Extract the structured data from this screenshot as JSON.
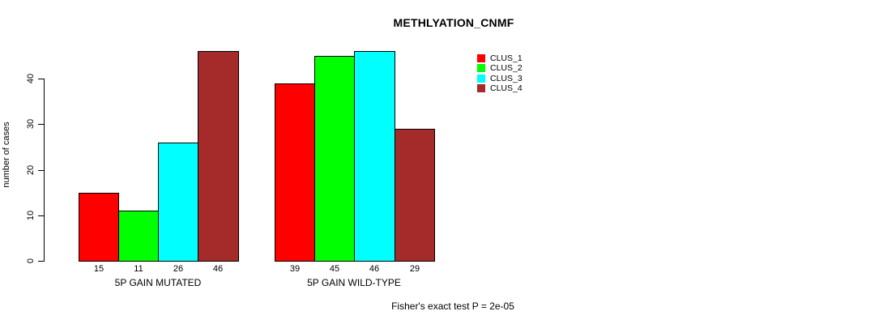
{
  "chart_data": {
    "type": "bar",
    "title": "METHLYATION_CNMF",
    "ylabel": "number of cases",
    "xlabel": "",
    "groups": [
      "5P GAIN MUTATED",
      "5P GAIN WILD-TYPE"
    ],
    "series": [
      {
        "name": "CLUS_1",
        "color": "#ff0000",
        "values": [
          15,
          39
        ]
      },
      {
        "name": "CLUS_2",
        "color": "#00ff00",
        "values": [
          11,
          45
        ]
      },
      {
        "name": "CLUS_3",
        "color": "#00ffff",
        "values": [
          26,
          46
        ]
      },
      {
        "name": "CLUS_4",
        "color": "#a52a2a",
        "values": [
          46,
          29
        ]
      }
    ],
    "yticks": [
      0,
      10,
      20,
      30,
      40
    ],
    "ylim": [
      0,
      46
    ],
    "grid": false,
    "legend_position": "top-right",
    "bar_value_labels_shown": true,
    "annotation": "Fisher's exact test P = 2e-05"
  }
}
